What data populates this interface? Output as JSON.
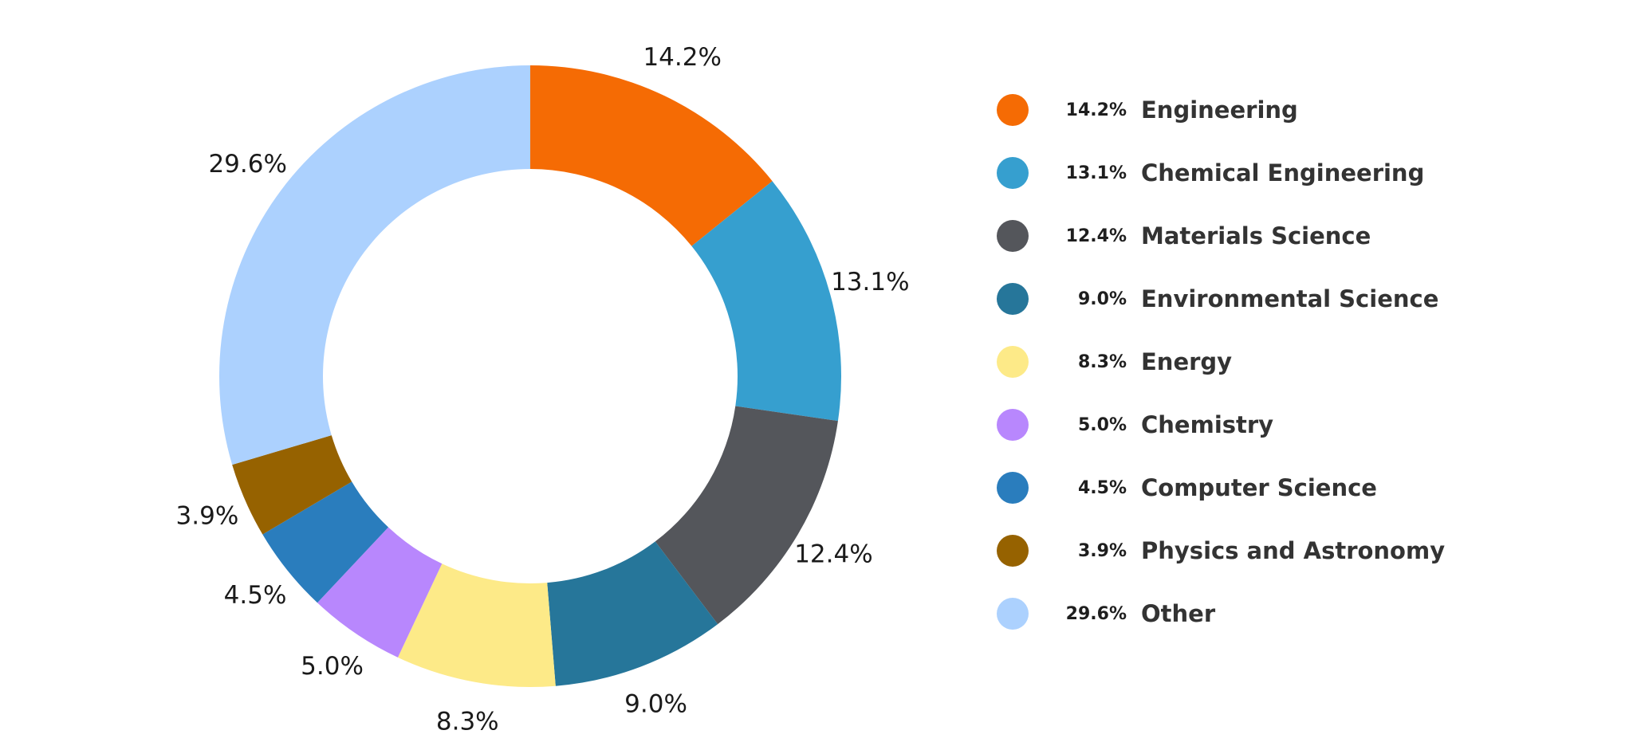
{
  "chart_data": {
    "type": "pie",
    "variant": "donut",
    "title": "",
    "categories": [
      "Engineering",
      "Chemical Engineering",
      "Materials Science",
      "Environmental Science",
      "Energy",
      "Chemistry",
      "Computer Science",
      "Physics and Astronomy",
      "Other"
    ],
    "values": [
      14.2,
      13.1,
      12.4,
      9.0,
      8.3,
      5.0,
      4.5,
      3.9,
      29.6
    ],
    "labels": [
      "14.2%",
      "13.1%",
      "12.4%",
      "9.0%",
      "8.3%",
      "5.0%",
      "4.5%",
      "3.9%",
      "29.6%"
    ],
    "colors": [
      "#f56b04",
      "#369fcf",
      "#54565b",
      "#26769a",
      "#fdea88",
      "#b887fd",
      "#2a7dbd",
      "#966200",
      "#acd1fe"
    ],
    "start_angle_deg": 0,
    "direction": "clockwise",
    "legend_position": "right"
  },
  "legend": {
    "items": [
      {
        "pct": "14.2%",
        "label": "Engineering",
        "color": "#f56b04"
      },
      {
        "pct": "13.1%",
        "label": "Chemical Engineering",
        "color": "#369fcf"
      },
      {
        "pct": "12.4%",
        "label": "Materials Science",
        "color": "#54565b"
      },
      {
        "pct": "9.0%",
        "label": "Environmental Science",
        "color": "#26769a"
      },
      {
        "pct": "8.3%",
        "label": "Energy",
        "color": "#fdea88"
      },
      {
        "pct": "5.0%",
        "label": "Chemistry",
        "color": "#b887fd"
      },
      {
        "pct": "4.5%",
        "label": "Computer Science",
        "color": "#2a7dbd"
      },
      {
        "pct": "3.9%",
        "label": "Physics and Astronomy",
        "color": "#966200"
      },
      {
        "pct": "29.6%",
        "label": "Other",
        "color": "#acd1fe"
      }
    ]
  }
}
